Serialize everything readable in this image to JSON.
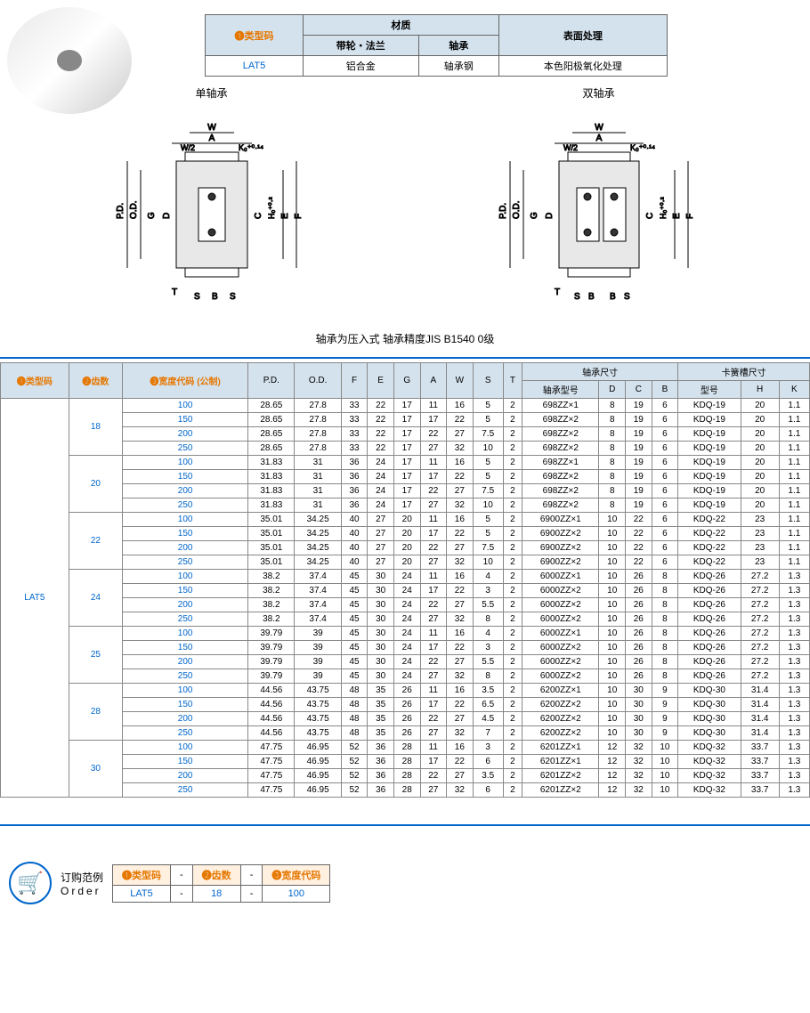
{
  "spec": {
    "h1": "❶类型码",
    "h2": "材质",
    "h3": "表面处理",
    "h2a": "带轮・法兰",
    "h2b": "轴承",
    "type": "LAT5",
    "mat1": "铝合金",
    "mat2": "轴承钢",
    "surf": "本色阳极氧化处理"
  },
  "diag": {
    "left_title": "单轴承",
    "right_title": "双轴承",
    "note": "轴承为压入式 轴承精度JIS B1540 0级"
  },
  "headers": {
    "c1": "❶类型码",
    "c2": "❷齿数",
    "c3": "❸宽度代码\n(公制)",
    "c4": "P.D.",
    "c5": "O.D.",
    "c6": "F",
    "c7": "E",
    "c8": "G",
    "c9": "A",
    "c10": "W",
    "c11": "S",
    "c12": "T",
    "bearing": "轴承尺寸",
    "b1": "轴承型号",
    "b2": "D",
    "b3": "C",
    "b4": "B",
    "snap": "卡簧槽尺寸",
    "s1": "型号",
    "s2": "H",
    "s3": "K"
  },
  "type_code": "LAT5",
  "teeth": [
    "18",
    "20",
    "22",
    "24",
    "25",
    "28",
    "30"
  ],
  "widths": [
    "100",
    "150",
    "200",
    "250"
  ],
  "rows": [
    [
      "28.65",
      "27.8",
      "33",
      "22",
      "17",
      "11",
      "16",
      "5",
      "2",
      "698ZZ×1",
      "8",
      "19",
      "6",
      "KDQ-19",
      "20",
      "1.1"
    ],
    [
      "28.65",
      "27.8",
      "33",
      "22",
      "17",
      "17",
      "22",
      "5",
      "2",
      "698ZZ×2",
      "8",
      "19",
      "6",
      "KDQ-19",
      "20",
      "1.1"
    ],
    [
      "28.65",
      "27.8",
      "33",
      "22",
      "17",
      "22",
      "27",
      "7.5",
      "2",
      "698ZZ×2",
      "8",
      "19",
      "6",
      "KDQ-19",
      "20",
      "1.1"
    ],
    [
      "28.65",
      "27.8",
      "33",
      "22",
      "17",
      "27",
      "32",
      "10",
      "2",
      "698ZZ×2",
      "8",
      "19",
      "6",
      "KDQ-19",
      "20",
      "1.1"
    ],
    [
      "31.83",
      "31",
      "36",
      "24",
      "17",
      "11",
      "16",
      "5",
      "2",
      "698ZZ×1",
      "8",
      "19",
      "6",
      "KDQ-19",
      "20",
      "1.1"
    ],
    [
      "31.83",
      "31",
      "36",
      "24",
      "17",
      "17",
      "22",
      "5",
      "2",
      "698ZZ×2",
      "8",
      "19",
      "6",
      "KDQ-19",
      "20",
      "1.1"
    ],
    [
      "31.83",
      "31",
      "36",
      "24",
      "17",
      "22",
      "27",
      "7.5",
      "2",
      "698ZZ×2",
      "8",
      "19",
      "6",
      "KDQ-19",
      "20",
      "1.1"
    ],
    [
      "31.83",
      "31",
      "36",
      "24",
      "17",
      "27",
      "32",
      "10",
      "2",
      "698ZZ×2",
      "8",
      "19",
      "6",
      "KDQ-19",
      "20",
      "1.1"
    ],
    [
      "35.01",
      "34.25",
      "40",
      "27",
      "20",
      "11",
      "16",
      "5",
      "2",
      "6900ZZ×1",
      "10",
      "22",
      "6",
      "KDQ-22",
      "23",
      "1.1"
    ],
    [
      "35.01",
      "34.25",
      "40",
      "27",
      "20",
      "17",
      "22",
      "5",
      "2",
      "6900ZZ×2",
      "10",
      "22",
      "6",
      "KDQ-22",
      "23",
      "1.1"
    ],
    [
      "35.01",
      "34.25",
      "40",
      "27",
      "20",
      "22",
      "27",
      "7.5",
      "2",
      "6900ZZ×2",
      "10",
      "22",
      "6",
      "KDQ-22",
      "23",
      "1.1"
    ],
    [
      "35.01",
      "34.25",
      "40",
      "27",
      "20",
      "27",
      "32",
      "10",
      "2",
      "6900ZZ×2",
      "10",
      "22",
      "6",
      "KDQ-22",
      "23",
      "1.1"
    ],
    [
      "38.2",
      "37.4",
      "45",
      "30",
      "24",
      "11",
      "16",
      "4",
      "2",
      "6000ZZ×1",
      "10",
      "26",
      "8",
      "KDQ-26",
      "27.2",
      "1.3"
    ],
    [
      "38.2",
      "37.4",
      "45",
      "30",
      "24",
      "17",
      "22",
      "3",
      "2",
      "6000ZZ×2",
      "10",
      "26",
      "8",
      "KDQ-26",
      "27.2",
      "1.3"
    ],
    [
      "38.2",
      "37.4",
      "45",
      "30",
      "24",
      "22",
      "27",
      "5.5",
      "2",
      "6000ZZ×2",
      "10",
      "26",
      "8",
      "KDQ-26",
      "27.2",
      "1.3"
    ],
    [
      "38.2",
      "37.4",
      "45",
      "30",
      "24",
      "27",
      "32",
      "8",
      "2",
      "6000ZZ×2",
      "10",
      "26",
      "8",
      "KDQ-26",
      "27.2",
      "1.3"
    ],
    [
      "39.79",
      "39",
      "45",
      "30",
      "24",
      "11",
      "16",
      "4",
      "2",
      "6000ZZ×1",
      "10",
      "26",
      "8",
      "KDQ-26",
      "27.2",
      "1.3"
    ],
    [
      "39.79",
      "39",
      "45",
      "30",
      "24",
      "17",
      "22",
      "3",
      "2",
      "6000ZZ×2",
      "10",
      "26",
      "8",
      "KDQ-26",
      "27.2",
      "1.3"
    ],
    [
      "39.79",
      "39",
      "45",
      "30",
      "24",
      "22",
      "27",
      "5.5",
      "2",
      "6000ZZ×2",
      "10",
      "26",
      "8",
      "KDQ-26",
      "27.2",
      "1.3"
    ],
    [
      "39.79",
      "39",
      "45",
      "30",
      "24",
      "27",
      "32",
      "8",
      "2",
      "6000ZZ×2",
      "10",
      "26",
      "8",
      "KDQ-26",
      "27.2",
      "1.3"
    ],
    [
      "44.56",
      "43.75",
      "48",
      "35",
      "26",
      "11",
      "16",
      "3.5",
      "2",
      "6200ZZ×1",
      "10",
      "30",
      "9",
      "KDQ-30",
      "31.4",
      "1.3"
    ],
    [
      "44.56",
      "43.75",
      "48",
      "35",
      "26",
      "17",
      "22",
      "6.5",
      "2",
      "6200ZZ×2",
      "10",
      "30",
      "9",
      "KDQ-30",
      "31.4",
      "1.3"
    ],
    [
      "44.56",
      "43.75",
      "48",
      "35",
      "26",
      "22",
      "27",
      "4.5",
      "2",
      "6200ZZ×2",
      "10",
      "30",
      "9",
      "KDQ-30",
      "31.4",
      "1.3"
    ],
    [
      "44.56",
      "43.75",
      "48",
      "35",
      "26",
      "27",
      "32",
      "7",
      "2",
      "6200ZZ×2",
      "10",
      "30",
      "9",
      "KDQ-30",
      "31.4",
      "1.3"
    ],
    [
      "47.75",
      "46.95",
      "52",
      "36",
      "28",
      "11",
      "16",
      "3",
      "2",
      "6201ZZ×1",
      "12",
      "32",
      "10",
      "KDQ-32",
      "33.7",
      "1.3"
    ],
    [
      "47.75",
      "46.95",
      "52",
      "36",
      "28",
      "17",
      "22",
      "6",
      "2",
      "6201ZZ×1",
      "12",
      "32",
      "10",
      "KDQ-32",
      "33.7",
      "1.3"
    ],
    [
      "47.75",
      "46.95",
      "52",
      "36",
      "28",
      "22",
      "27",
      "3.5",
      "2",
      "6201ZZ×2",
      "12",
      "32",
      "10",
      "KDQ-32",
      "33.7",
      "1.3"
    ],
    [
      "47.75",
      "46.95",
      "52",
      "36",
      "28",
      "27",
      "32",
      "6",
      "2",
      "6201ZZ×2",
      "12",
      "32",
      "10",
      "KDQ-32",
      "33.7",
      "1.3"
    ]
  ],
  "order": {
    "label1": "订购范例",
    "label2": "Order",
    "h1": "❶类型码",
    "h2": "❷齿数",
    "h3": "❸宽度代码",
    "v1": "LAT5",
    "v2": "18",
    "v3": "100",
    "dash": "-"
  }
}
